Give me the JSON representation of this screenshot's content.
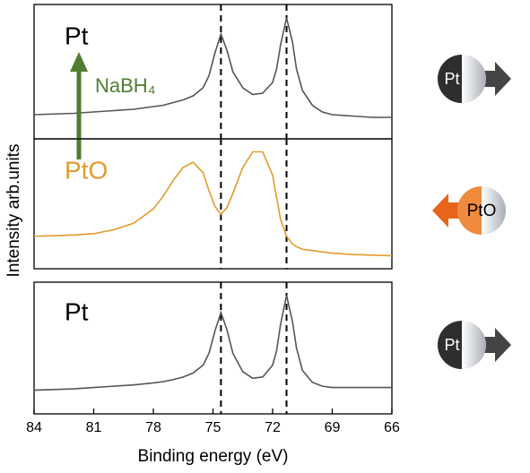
{
  "chart_data": [
    {
      "type": "line",
      "xlim": [
        84,
        66
      ],
      "ylim": [
        0,
        100
      ],
      "y_label": "Intensity arb.units",
      "vlines": [
        74.6,
        71.3
      ],
      "annotation": "NaBH₄",
      "annotation_color": "#4e7d33",
      "badge": "Pt",
      "x": [
        84,
        83,
        82,
        81,
        80,
        79,
        78,
        77.5,
        77,
        76.5,
        76,
        75.5,
        75.2,
        74.9,
        74.6,
        74.3,
        74,
        73.5,
        73,
        72.5,
        72,
        71.8,
        71.6,
        71.3,
        71,
        70.8,
        70.5,
        70,
        69.5,
        69,
        68,
        67,
        66
      ],
      "series": [
        {
          "name": "Pt",
          "color": "#555555",
          "values": [
            18,
            18.5,
            19,
            20,
            21,
            22,
            24,
            25,
            27,
            29,
            32,
            38,
            47,
            64,
            78,
            66,
            50,
            38,
            33,
            34,
            42,
            52,
            70,
            90,
            72,
            52,
            36,
            25,
            20,
            18,
            17,
            16,
            16
          ]
        }
      ]
    },
    {
      "type": "line",
      "xlim": [
        84,
        66
      ],
      "ylim": [
        0,
        100
      ],
      "vlines": [
        74.6,
        71.3
      ],
      "badge": "PtO",
      "x": [
        84,
        83,
        82,
        81,
        80,
        79,
        78,
        77.5,
        77,
        76.5,
        76,
        75.5,
        75.2,
        74.9,
        74.6,
        74.3,
        74,
        73.5,
        73,
        72.5,
        72,
        71.8,
        71.6,
        71.3,
        71,
        70.8,
        70.5,
        70,
        69.5,
        69,
        68,
        67,
        66
      ],
      "series": [
        {
          "name": "PtO",
          "color": "#e39a2c",
          "values": [
            25,
            25.5,
            26,
            27,
            30,
            35,
            46,
            56,
            68,
            78,
            82,
            74,
            60,
            48,
            42,
            47,
            58,
            78,
            90,
            90,
            72,
            55,
            38,
            25,
            19,
            17,
            15,
            14,
            13,
            12,
            11,
            10.5,
            10
          ]
        }
      ]
    },
    {
      "type": "line",
      "xlim": [
        84,
        66
      ],
      "ylim": [
        0,
        100
      ],
      "x_label": "Binding energy (eV)",
      "xticks": [
        84,
        81,
        78,
        75,
        72,
        69,
        66
      ],
      "vlines": [
        74.6,
        71.3
      ],
      "badge": "Pt",
      "x": [
        84,
        83,
        82,
        81,
        80,
        79,
        78,
        77.5,
        77,
        76.5,
        76,
        75.5,
        75.2,
        74.9,
        74.6,
        74.3,
        74,
        73.5,
        73,
        72.5,
        72,
        71.8,
        71.6,
        71.3,
        71,
        70.8,
        70.5,
        70,
        69.5,
        69,
        68,
        67,
        66
      ],
      "series": [
        {
          "name": "Pt",
          "color": "#555555",
          "values": [
            18,
            18.5,
            19,
            20,
            21,
            22,
            23.5,
            24.5,
            26,
            28,
            31,
            37,
            46,
            63,
            77,
            64,
            46,
            32,
            27,
            28,
            37,
            48,
            68,
            90,
            70,
            50,
            33,
            24,
            21,
            20,
            20,
            20,
            20
          ]
        }
      ]
    }
  ]
}
